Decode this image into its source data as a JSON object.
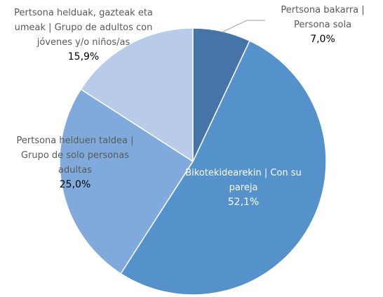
{
  "chart_data": {
    "type": "pie",
    "categories": [
      "Pertsona bakarra | Persona sola",
      "Bikotekidearekin | Con su pareja",
      "Pertsona helduen taldea | Grupo de solo personas adultas",
      "Pertsona helduak, gazteak eta umeak | Grupo de adultos con jóvenes y/o niños/as"
    ],
    "values": [
      7.0,
      52.1,
      25.0,
      15.9
    ],
    "value_labels": [
      "7,0%",
      "52,1%",
      "25,0%",
      "15,9%"
    ],
    "colors": [
      "#4674a9",
      "#5591cb",
      "#80aadb",
      "#b8cce9"
    ]
  }
}
